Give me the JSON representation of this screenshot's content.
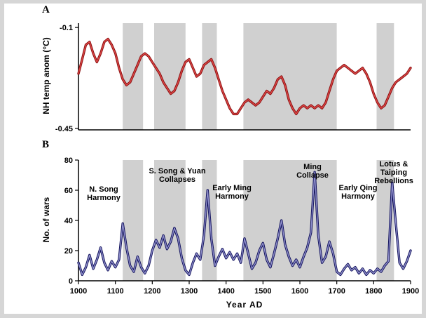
{
  "panels": {
    "a": "A",
    "b": "B"
  },
  "chart_data": [
    {
      "type": "line",
      "panel": "A",
      "series_name": "NH temperature anomaly",
      "ylabel": "NH temp anom (°C)",
      "xlabel": "",
      "xlim": [
        1000,
        1900
      ],
      "ylim": [
        -0.455,
        -0.085
      ],
      "yticks": [
        -0.1,
        -0.45
      ],
      "ytick_labels": [
        "-0.1",
        "-0.45"
      ],
      "xticks": [],
      "grid": false,
      "legend": "none",
      "band_color": "#d0d0d0",
      "shaded_bands": [
        [
          1120,
          1175
        ],
        [
          1205,
          1290
        ],
        [
          1335,
          1375
        ],
        [
          1447,
          1700
        ],
        [
          1808,
          1855
        ]
      ],
      "line_color_outer": "#8b1212",
      "line_color_inner": "#e04848",
      "x": [
        1000,
        1010,
        1020,
        1030,
        1040,
        1050,
        1060,
        1070,
        1080,
        1090,
        1100,
        1110,
        1120,
        1130,
        1140,
        1150,
        1160,
        1170,
        1180,
        1190,
        1200,
        1210,
        1220,
        1230,
        1240,
        1250,
        1260,
        1270,
        1280,
        1290,
        1300,
        1310,
        1320,
        1330,
        1340,
        1350,
        1360,
        1370,
        1380,
        1390,
        1400,
        1410,
        1420,
        1430,
        1440,
        1450,
        1460,
        1470,
        1480,
        1490,
        1500,
        1510,
        1520,
        1530,
        1540,
        1550,
        1560,
        1570,
        1580,
        1590,
        1600,
        1610,
        1620,
        1630,
        1640,
        1650,
        1660,
        1670,
        1680,
        1690,
        1700,
        1710,
        1720,
        1730,
        1740,
        1750,
        1760,
        1770,
        1780,
        1790,
        1800,
        1810,
        1820,
        1830,
        1840,
        1850,
        1860,
        1870,
        1880,
        1890,
        1900
      ],
      "y": [
        -0.26,
        -0.21,
        -0.16,
        -0.15,
        -0.19,
        -0.22,
        -0.19,
        -0.15,
        -0.14,
        -0.16,
        -0.19,
        -0.24,
        -0.28,
        -0.3,
        -0.29,
        -0.26,
        -0.23,
        -0.2,
        -0.19,
        -0.2,
        -0.22,
        -0.24,
        -0.26,
        -0.29,
        -0.31,
        -0.33,
        -0.32,
        -0.29,
        -0.25,
        -0.22,
        -0.21,
        -0.24,
        -0.27,
        -0.26,
        -0.23,
        -0.22,
        -0.21,
        -0.24,
        -0.28,
        -0.32,
        -0.35,
        -0.38,
        -0.4,
        -0.4,
        -0.38,
        -0.36,
        -0.35,
        -0.36,
        -0.37,
        -0.36,
        -0.34,
        -0.32,
        -0.33,
        -0.31,
        -0.28,
        -0.27,
        -0.3,
        -0.35,
        -0.38,
        -0.4,
        -0.38,
        -0.37,
        -0.38,
        -0.37,
        -0.38,
        -0.37,
        -0.38,
        -0.36,
        -0.32,
        -0.28,
        -0.25,
        -0.24,
        -0.23,
        -0.24,
        -0.25,
        -0.26,
        -0.25,
        -0.24,
        -0.26,
        -0.29,
        -0.33,
        -0.36,
        -0.38,
        -0.37,
        -0.34,
        -0.31,
        -0.29,
        -0.28,
        -0.27,
        -0.26,
        -0.24
      ]
    },
    {
      "type": "line",
      "panel": "B",
      "series_name": "Number of wars",
      "ylabel": "No. of wars",
      "xlabel": "Year  AD",
      "xlim": [
        1000,
        1900
      ],
      "ylim": [
        0,
        80
      ],
      "yticks": [
        0,
        20,
        40,
        60,
        80
      ],
      "ytick_labels": [
        "0",
        "20",
        "40",
        "60",
        "80"
      ],
      "xticks": [
        1000,
        1100,
        1200,
        1300,
        1400,
        1500,
        1600,
        1700,
        1800,
        1900
      ],
      "grid": false,
      "legend": "none",
      "band_color": "#d0d0d0",
      "shaded_bands": [
        [
          1120,
          1175
        ],
        [
          1205,
          1290
        ],
        [
          1335,
          1375
        ],
        [
          1447,
          1700
        ],
        [
          1808,
          1855
        ]
      ],
      "line_color_outer": "#15155e",
      "line_color_inner": "#9090cc",
      "x": [
        1000,
        1010,
        1020,
        1030,
        1040,
        1050,
        1060,
        1070,
        1080,
        1090,
        1100,
        1110,
        1120,
        1130,
        1140,
        1150,
        1160,
        1170,
        1180,
        1190,
        1200,
        1210,
        1220,
        1230,
        1240,
        1250,
        1260,
        1270,
        1280,
        1290,
        1300,
        1310,
        1320,
        1330,
        1340,
        1350,
        1360,
        1370,
        1380,
        1390,
        1400,
        1410,
        1420,
        1430,
        1440,
        1450,
        1460,
        1470,
        1480,
        1490,
        1500,
        1510,
        1520,
        1530,
        1540,
        1550,
        1560,
        1570,
        1580,
        1590,
        1600,
        1610,
        1620,
        1630,
        1640,
        1650,
        1660,
        1670,
        1680,
        1690,
        1700,
        1710,
        1720,
        1730,
        1740,
        1750,
        1760,
        1770,
        1780,
        1790,
        1800,
        1810,
        1820,
        1830,
        1840,
        1850,
        1860,
        1870,
        1880,
        1890,
        1900
      ],
      "y": [
        12,
        4,
        9,
        17,
        8,
        14,
        22,
        12,
        7,
        13,
        9,
        14,
        38,
        22,
        10,
        6,
        16,
        9,
        5,
        10,
        20,
        27,
        22,
        30,
        21,
        26,
        35,
        28,
        15,
        7,
        4,
        12,
        18,
        14,
        30,
        60,
        28,
        10,
        16,
        21,
        15,
        19,
        14,
        18,
        12,
        28,
        18,
        8,
        12,
        20,
        25,
        14,
        9,
        18,
        28,
        40,
        24,
        16,
        10,
        14,
        9,
        16,
        22,
        32,
        72,
        30,
        12,
        16,
        26,
        18,
        6,
        4,
        8,
        11,
        7,
        9,
        5,
        8,
        4,
        7,
        5,
        8,
        6,
        10,
        13,
        65,
        38,
        12,
        8,
        13,
        20
      ],
      "annotations": [
        {
          "text": "N. Song\nHarmony",
          "year": 1068,
          "value": 52
        },
        {
          "text": "S. Song & Yuan\nCollapses",
          "year": 1265,
          "value": 66
        },
        {
          "text": "Early Ming\nHarmony",
          "year": 1415,
          "value": 54
        },
        {
          "text": "Ming\nCollapse",
          "year": 1638,
          "value": 70
        },
        {
          "text": "Early Qing\nHarmony",
          "year": 1755,
          "value": 54
        },
        {
          "text": "Lotus &\nTaiping\nRebellions",
          "year": 1852,
          "value": 68
        }
      ]
    }
  ]
}
